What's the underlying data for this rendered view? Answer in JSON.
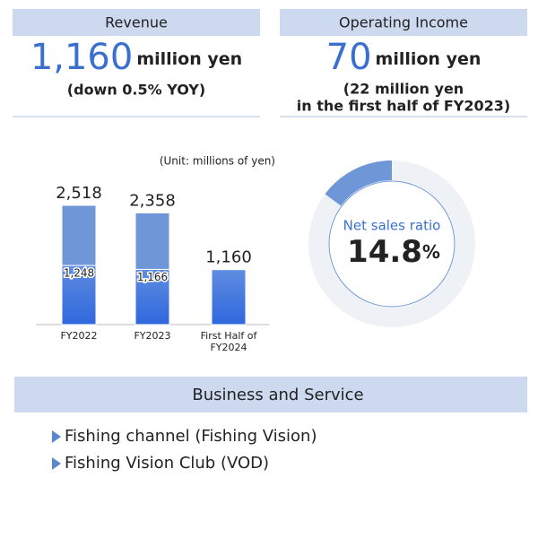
{
  "revenue": {
    "label": "Revenue",
    "value": "1,160",
    "unit": "million yen",
    "note": "(down 0.5% YOY)"
  },
  "operating_income": {
    "label": "Operating Income",
    "value": "70",
    "unit": "million yen",
    "note_lines": [
      "(22 million yen",
      "in the first half of FY2023)"
    ]
  },
  "chart_data": [
    {
      "type": "bar",
      "subtitle": "(Unit: millions of yen)",
      "categories": [
        "FY2022",
        "FY2023",
        "First Half of FY2024"
      ],
      "series": [
        {
          "color": "#3d73dc",
          "values": [
            1248,
            1166,
            1160
          ],
          "value_labels": [
            "1,248",
            "1,166",
            null
          ]
        },
        {
          "color": "#6f96d6",
          "values": [
            1270,
            1192,
            null
          ]
        }
      ],
      "totals": [
        2518,
        2358,
        1160
      ],
      "total_labels": [
        "2,518",
        "2,358",
        "1,160"
      ]
    },
    {
      "type": "pie",
      "center_title": "Net sales ratio",
      "values": [
        14.8
      ],
      "unit": "%",
      "color": "#6f96d6",
      "track_color": "#eef1f6"
    }
  ],
  "business": {
    "title": "Business and Service",
    "items": [
      "Fishing channel (Fishing Vision)",
      "Fishing Vision Club (VOD)"
    ]
  }
}
